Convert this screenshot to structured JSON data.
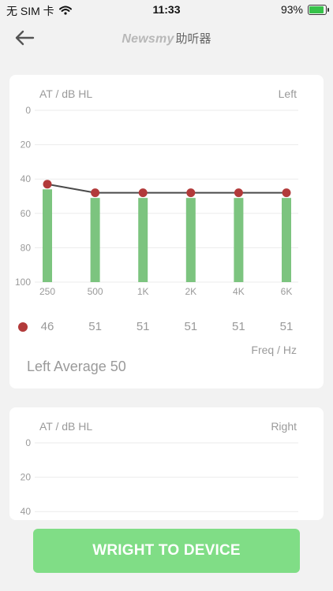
{
  "status": {
    "carrier": "无 SIM 卡",
    "time": "11:33",
    "battery": "93%",
    "battery_level": 0.93
  },
  "nav": {
    "back_icon": "back-arrow-icon",
    "brand": "Newsmy",
    "title_cn": "助听器"
  },
  "left_chart": {
    "unit_label": "AT / dB HL",
    "side_label": "Left",
    "freq_label": "Freq / Hz",
    "average_text": "Left Average 50",
    "values_display": [
      "46",
      "51",
      "51",
      "51",
      "51",
      "51"
    ]
  },
  "right_chart": {
    "unit_label": "AT / dB HL",
    "side_label": "Right"
  },
  "button": {
    "label": "WRIGHT TO DEVICE"
  },
  "colors": {
    "bar": "#7cc47f",
    "point": "#b23a3a",
    "line": "#4a4a4a",
    "button": "#80dd86"
  },
  "chart_data": [
    {
      "type": "bar",
      "categories": [
        "250",
        "500",
        "1K",
        "2K",
        "4K",
        "6K"
      ],
      "values": [
        46,
        51,
        51,
        51,
        51,
        51
      ],
      "line_points": [
        43,
        48,
        48,
        48,
        48,
        48
      ],
      "y_ticks": [
        0,
        20,
        40,
        60,
        80,
        100
      ],
      "ylim": [
        0,
        100
      ],
      "y_inverted": true,
      "xlabel": "Freq / Hz",
      "ylabel": "AT / dB HL",
      "grid": true
    },
    {
      "type": "bar",
      "categories": [],
      "values": [],
      "y_ticks": [
        0,
        20,
        40
      ],
      "ylim": [
        0,
        100
      ],
      "y_inverted": true,
      "ylabel": "AT / dB HL",
      "grid": true
    }
  ]
}
